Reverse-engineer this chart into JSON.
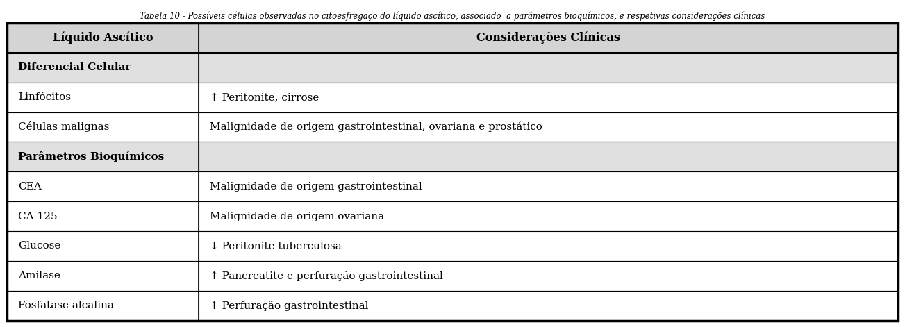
{
  "title": "Tabela 10 - Possíveis células observadas no citoesfregaço do líquido ascítico, associado  a parâmetros bioquímicos, e respetivas considerações clínicas",
  "col_headers": [
    "Líquido Ascítico",
    "Considerações Clínicas"
  ],
  "col_split": 0.215,
  "rows": [
    {
      "col1": "Diferencial Celular",
      "col2": "",
      "bold": true,
      "bg": "#e0e0e0"
    },
    {
      "col1": "Linfócitos",
      "col2": "↑ Peritonite, cirrose",
      "bold": false,
      "bg": "#ffffff"
    },
    {
      "col1": "Células malignas",
      "col2": "Malignidade de origem gastrointestinal, ovariana e prostático",
      "bold": false,
      "bg": "#ffffff"
    },
    {
      "col1": "Parâmetros Bioquímicos",
      "col2": "",
      "bold": true,
      "bg": "#e0e0e0"
    },
    {
      "col1": "CEA",
      "col2": "Malignidade de origem gastrointestinal",
      "bold": false,
      "bg": "#ffffff"
    },
    {
      "col1": "CA 125",
      "col2": "Malignidade de origem ovariana",
      "bold": false,
      "bg": "#ffffff"
    },
    {
      "col1": "Glucose",
      "col2": "↓ Peritonite tuberculosa",
      "bold": false,
      "bg": "#ffffff"
    },
    {
      "col1": "Amilase",
      "col2": "↑ Pancreatite e perfuração gastrointestinal",
      "bold": false,
      "bg": "#ffffff"
    },
    {
      "col1": "Fosfatase alcalina",
      "col2": "↑ Perfuração gastrointestinal",
      "bold": false,
      "bg": "#ffffff"
    }
  ],
  "header_bg": "#d4d4d4",
  "border_color": "#000000",
  "text_color": "#000000",
  "title_fontsize": 8.5,
  "header_fontsize": 11.5,
  "cell_fontsize": 11.0,
  "fig_width": 13.03,
  "fig_height": 4.71
}
